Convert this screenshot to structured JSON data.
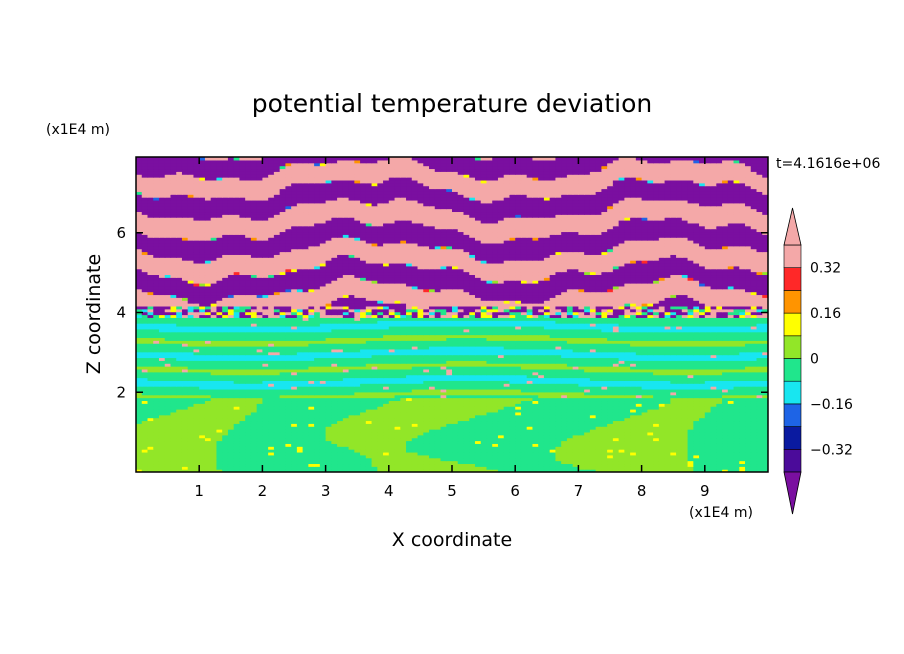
{
  "chart_data": {
    "type": "heatmap",
    "title": "potential temperature deviation",
    "xlabel": "X coordinate",
    "ylabel": "Z coordinate",
    "x_unit": "(x1E4 m)",
    "y_unit": "(x1E4 m)",
    "time_label": "t=4.1616e+06",
    "xlim": [
      0,
      10
    ],
    "ylim": [
      0,
      7.9
    ],
    "x_ticks": [
      1,
      2,
      3,
      4,
      5,
      6,
      7,
      8,
      9
    ],
    "y_ticks": [
      2,
      4,
      6
    ],
    "colorbar": {
      "levels": [
        -0.4,
        -0.32,
        -0.24,
        -0.16,
        -0.08,
        0,
        0.08,
        0.16,
        0.24,
        0.32,
        0.4
      ],
      "tick_values": [
        0.32,
        0.16,
        0,
        -0.16,
        -0.32
      ],
      "tick_labels": [
        "0.32",
        "0.16",
        "0",
        "−0.16",
        "−0.32"
      ],
      "colors": [
        "#7a0fa0",
        "#4b0b9a",
        "#0a1aa0",
        "#1e64e6",
        "#18e6f0",
        "#20e68c",
        "#92e628",
        "#ffff00",
        "#ff9400",
        "#ff2828",
        "#f4a8a8"
      ],
      "extend": "both"
    },
    "regions": [
      {
        "z_range": [
          4.2,
          7.9
        ],
        "pattern": "alternating bands",
        "dominant_colors": [
          "#f4a8a8",
          "#7a0fa0"
        ]
      },
      {
        "z_range": [
          3.85,
          4.2
        ],
        "pattern": "mixed layer",
        "dominant_colors": [
          "#7a0fa0",
          "#f4a8a8",
          "#ffff00",
          "#20e68c"
        ]
      },
      {
        "z_range": [
          1.9,
          3.85
        ],
        "pattern": "stratified",
        "dominant_colors": [
          "#20e68c",
          "#18e6f0",
          "#92e628"
        ]
      },
      {
        "z_range": [
          0,
          1.9
        ],
        "pattern": "turbulent eddies",
        "dominant_colors": [
          "#92e628",
          "#20e68c"
        ]
      }
    ]
  }
}
